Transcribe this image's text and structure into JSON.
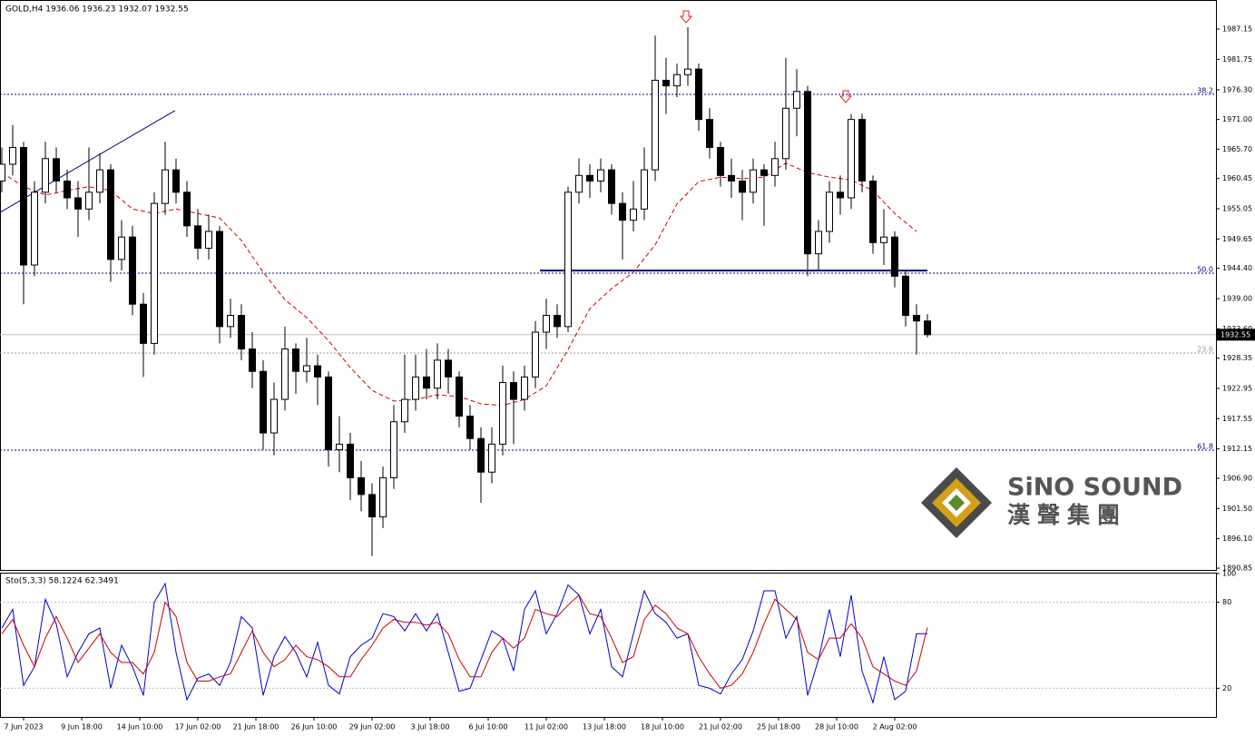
{
  "chart_data": [
    {
      "type": "candlestick",
      "title": "GOLD,H4  1936.06 1936.23 1932.07 1932.55",
      "color": "#000000",
      "x": [
        0,
        3,
        6,
        9,
        12,
        15,
        18,
        21,
        24,
        27,
        30,
        33,
        36,
        39,
        42,
        45,
        48,
        51,
        54,
        57,
        60,
        63,
        66,
        69,
        72,
        75,
        78,
        81,
        84,
        87,
        90,
        93,
        96,
        99,
        102,
        105,
        108,
        111,
        114,
        117,
        120,
        123,
        126,
        129,
        132,
        135,
        138,
        141,
        144,
        147,
        150,
        153,
        156,
        159,
        162,
        165,
        168,
        171,
        174,
        177,
        180,
        183,
        186,
        189,
        192,
        195,
        198,
        201,
        204,
        207,
        210,
        213,
        216,
        219,
        222,
        225,
        228,
        231,
        234,
        237,
        240,
        243,
        246,
        249,
        252,
        255
      ],
      "open": [
        1960,
        1963,
        1966,
        1945,
        1958,
        1964,
        1960,
        1957,
        1955,
        1958,
        1962,
        1946,
        1950,
        1938,
        1931,
        1956,
        1962,
        1958,
        1952,
        1948,
        1951,
        1934,
        1936,
        1930,
        1926,
        1915,
        1921,
        1930,
        1926,
        1927,
        1925,
        1912,
        1913,
        1907,
        1904,
        1900,
        1907,
        1917,
        1921,
        1925,
        1923,
        1928,
        1925,
        1918,
        1914,
        1908,
        1913,
        1924,
        1921,
        1925,
        1933,
        1936,
        1934,
        1958,
        1961,
        1960,
        1962,
        1956,
        1953,
        1955,
        1962,
        1978,
        1977,
        1979,
        1980,
        1971,
        1966,
        1961,
        1960,
        1958,
        1962,
        1961,
        1964,
        1973,
        1976,
        1947,
        1951,
        1958,
        1957,
        1971,
        1960,
        1949,
        1950,
        1943,
        1936,
        1935
      ],
      "high": [
        1966,
        1970,
        1967,
        1960,
        1967,
        1966,
        1962,
        1960,
        1966,
        1965,
        1963,
        1953,
        1952,
        1940,
        1958,
        1967,
        1964,
        1960,
        1955,
        1954,
        1952,
        1939,
        1938,
        1933,
        1928,
        1924,
        1934,
        1931,
        1932,
        1929,
        1926,
        1918,
        1915,
        1910,
        1906,
        1909,
        1920,
        1929,
        1929,
        1930,
        1931,
        1930,
        1926,
        1920,
        1916,
        1916,
        1927,
        1926,
        1927,
        1935,
        1939,
        1938,
        1959,
        1964,
        1963,
        1964,
        1963,
        1958,
        1960,
        1966,
        1986,
        1982,
        1981,
        1987.5,
        1981,
        1973,
        1967,
        1964,
        1962,
        1964,
        1963,
        1967,
        1982,
        1980,
        1977,
        1953,
        1960,
        1961,
        1972,
        1972,
        1961,
        1955,
        1951,
        1944,
        1938,
        1936.23
      ],
      "low": [
        1958,
        1961,
        1938,
        1943,
        1956,
        1958,
        1955,
        1950,
        1953,
        1956,
        1942,
        1944,
        1936,
        1925,
        1929,
        1954,
        1956,
        1950,
        1946,
        1946,
        1931,
        1932,
        1928,
        1923,
        1912,
        1911,
        1919,
        1922,
        1924,
        1920,
        1909,
        1908,
        1903,
        1901,
        1893,
        1898,
        1905,
        1915,
        1919,
        1921,
        1921,
        1922,
        1916,
        1912,
        1902.5,
        1906,
        1911,
        1913,
        1919,
        1923,
        1930,
        1932,
        1933,
        1956,
        1957,
        1958,
        1954,
        1946,
        1951,
        1953,
        1960,
        1972,
        1975,
        1977,
        1969,
        1964,
        1959,
        1957,
        1953,
        1956,
        1952,
        1959,
        1962,
        1968,
        1943,
        1944,
        1949,
        1954,
        1955,
        1958,
        1947,
        1945,
        1941,
        1934,
        1929,
        1932.07
      ],
      "close": [
        1963,
        1966,
        1945,
        1958,
        1964,
        1960,
        1957,
        1955,
        1958,
        1962,
        1946,
        1950,
        1938,
        1931,
        1956,
        1962,
        1958,
        1952,
        1948,
        1951,
        1934,
        1936,
        1930,
        1926,
        1915,
        1921,
        1930,
        1926,
        1927,
        1925,
        1912,
        1913,
        1907,
        1904,
        1900,
        1907,
        1917,
        1921,
        1925,
        1923,
        1928,
        1925,
        1918,
        1914,
        1908,
        1913,
        1924,
        1921,
        1925,
        1933,
        1936,
        1934,
        1958,
        1961,
        1960,
        1962,
        1956,
        1953,
        1955,
        1962,
        1978,
        1977,
        1979,
        1980,
        1971,
        1966,
        1961,
        1960,
        1958,
        1962,
        1961,
        1964,
        1973,
        1976,
        1947,
        1951,
        1958,
        1957,
        1971,
        1960,
        1949,
        1950,
        1943,
        1936,
        1935,
        1932.55
      ],
      "moving_average": {
        "color": "#cc0000",
        "x": [
          0,
          6,
          12,
          18,
          24,
          30,
          36,
          42,
          48,
          54,
          60,
          66,
          72,
          78,
          84,
          90,
          96,
          102,
          108,
          114,
          120,
          126,
          132,
          138,
          144,
          150,
          156,
          162,
          168,
          174,
          180,
          186,
          192,
          198,
          204,
          210,
          216,
          222,
          228,
          234,
          240,
          246,
          252
        ],
        "values": [
          1961.5,
          1959,
          1957.5,
          1958.3,
          1959,
          1958.3,
          1955,
          1954.2,
          1955,
          1954.2,
          1953.4,
          1949.4,
          1943.7,
          1938.8,
          1935.6,
          1931.5,
          1926.7,
          1922.6,
          1920.7,
          1921,
          1921.8,
          1921.5,
          1920.2,
          1919.9,
          1921,
          1923.4,
          1929.9,
          1937.2,
          1940.8,
          1943.7,
          1948.6,
          1955.9,
          1959.9,
          1960.7,
          1960.4,
          1960.7,
          1963.2,
          1961.5,
          1960.7,
          1960.2,
          1958.3,
          1954.2,
          1951
        ]
      },
      "levels": [
        {
          "name": "38.2",
          "value": 1975.48,
          "color": "#00008b"
        },
        {
          "name": "50.0",
          "value": 1943.54,
          "color": "#00008b"
        },
        {
          "name": "61.8",
          "value": 1911.93,
          "color": "#00008b"
        },
        {
          "name": "23.6",
          "value": 1929.27,
          "color": "#9a9a9a"
        }
      ],
      "support_line": {
        "x": [
          148.25,
          255
        ],
        "y": [
          1944,
          1944
        ],
        "color": "#000080"
      },
      "trend_line": {
        "x": [
          -0.5,
          47.75
        ],
        "y": [
          1954.4,
          1972.6
        ],
        "color": "#00008b"
      },
      "last_price": {
        "value": 1932.55,
        "label": "1932.55"
      },
      "xlim": [
        -0.5,
        334.5
      ],
      "ylim": [
        1890.53,
        1992.34
      ],
      "yticks": [
        1987.15,
        1981.75,
        {
          "value": 1976.3,
          "label": "1976.30"
        },
        {
          "value": 1971,
          "label": "1971.00"
        },
        {
          "value": 1965.7,
          "label": "1965.70"
        },
        1960.45,
        1955.05,
        1949.65,
        {
          "value": 1944.4,
          "label": "1944.40"
        },
        {
          "value": 1939,
          "label": "1939.00"
        },
        {
          "value": 1933.6,
          "label": "1933.60"
        },
        1928.35,
        1922.95,
        1917.55,
        1912.15,
        {
          "value": 1906.9,
          "label": "1906.90"
        },
        {
          "value": 1901.5,
          "label": "1901.50"
        },
        {
          "value": 1896.1,
          "label": "1896.10"
        },
        1890.85
      ],
      "xticks": [
        {
          "value": 6,
          "label": "7 Jun 2023"
        },
        {
          "value": 22,
          "label": "9 Jun 18:00"
        },
        {
          "value": 38,
          "label": "14 Jun 10:00"
        },
        {
          "value": 54,
          "label": "17 Jun 02:00"
        },
        {
          "value": 70,
          "label": "21 Jun 18:00"
        },
        {
          "value": 86,
          "label": "26 Jun 10:00"
        },
        {
          "value": 102,
          "label": "29 Jun 02:00"
        },
        {
          "value": 118,
          "label": "3 Jul 18:00"
        },
        {
          "value": 134,
          "label": "6 Jul 10:00"
        },
        {
          "value": 150,
          "label": "11 Jul 02:00"
        },
        {
          "value": 166,
          "label": "13 Jul 18:00"
        },
        {
          "value": 182,
          "label": "18 Jul 10:00"
        },
        {
          "value": 198,
          "label": "21 Jul 02:00"
        },
        {
          "value": 214,
          "label": "25 Jul 18:00"
        },
        {
          "value": 230,
          "label": "28 Jul 10:00"
        },
        {
          "value": 246,
          "label": "2 Aug 02:00"
        }
      ]
    },
    {
      "type": "line",
      "title": "Sto(5,3,3) 58.1224 62.3491",
      "x": [
        0,
        3,
        6,
        9,
        12,
        15,
        18,
        21,
        24,
        27,
        30,
        33,
        36,
        39,
        42,
        45,
        48,
        51,
        54,
        57,
        60,
        63,
        66,
        69,
        72,
        75,
        78,
        81,
        84,
        87,
        90,
        93,
        96,
        99,
        102,
        105,
        108,
        111,
        114,
        117,
        120,
        123,
        126,
        129,
        132,
        135,
        138,
        141,
        144,
        147,
        150,
        153,
        156,
        159,
        162,
        165,
        168,
        171,
        174,
        177,
        180,
        183,
        186,
        189,
        192,
        195,
        198,
        201,
        204,
        207,
        210,
        213,
        216,
        219,
        222,
        225,
        228,
        231,
        234,
        237,
        240,
        243,
        246,
        249,
        252,
        255
      ],
      "series": [
        {
          "color": "#0000cc",
          "values": [
            62,
            75,
            22,
            35,
            82,
            65,
            28,
            45,
            58,
            62,
            20,
            50,
            35,
            15,
            80,
            93,
            45,
            12,
            27,
            30,
            22,
            38,
            70,
            62,
            15,
            42,
            56,
            45,
            28,
            52,
            22,
            16,
            42,
            50,
            55,
            72,
            70,
            60,
            72,
            60,
            72,
            45,
            18,
            20,
            40,
            60,
            55,
            32,
            75,
            88,
            58,
            72,
            92,
            85,
            58,
            75,
            35,
            28,
            58,
            88,
            72,
            66,
            55,
            58,
            22,
            20,
            16,
            30,
            40,
            60,
            88,
            88,
            55,
            70,
            15,
            40,
            75,
            42,
            85,
            32,
            10,
            42,
            12,
            18,
            58,
            58.1224
          ]
        },
        {
          "color": "#cc0000",
          "values": [
            58,
            68,
            50,
            35,
            55,
            70,
            55,
            38,
            48,
            58,
            45,
            38,
            38,
            30,
            45,
            80,
            70,
            38,
            25,
            25,
            28,
            30,
            45,
            60,
            45,
            35,
            40,
            50,
            42,
            40,
            35,
            28,
            28,
            40,
            50,
            62,
            68,
            66,
            66,
            64,
            66,
            58,
            40,
            28,
            28,
            45,
            55,
            48,
            55,
            75,
            72,
            70,
            78,
            85,
            72,
            70,
            55,
            38,
            42,
            68,
            78,
            72,
            62,
            58,
            42,
            30,
            20,
            22,
            30,
            45,
            65,
            82,
            75,
            68,
            45,
            40,
            55,
            55,
            65,
            55,
            35,
            30,
            25,
            22,
            32,
            62.3491
          ]
        }
      ],
      "xlim": [
        -0.5,
        334.5
      ],
      "ylim": [
        0,
        100
      ],
      "yticks": [
        100,
        80,
        20
      ]
    },
    {
      "logo": {
        "name": "SiNO SOUND",
        "chinese": "漢聲集團"
      }
    }
  ]
}
